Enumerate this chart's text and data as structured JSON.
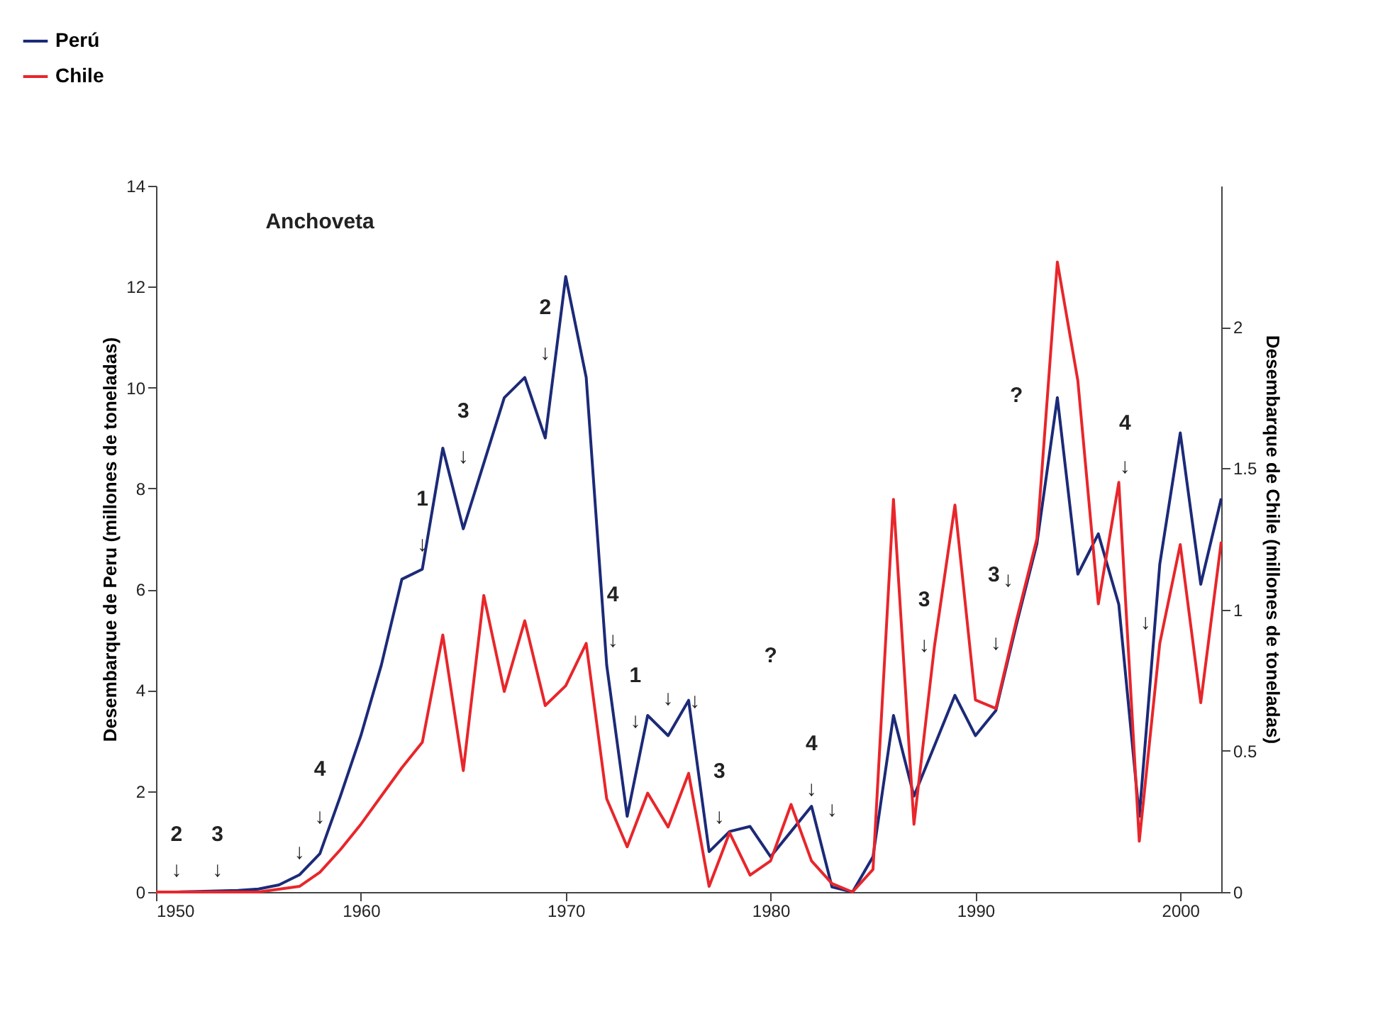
{
  "chart_data": {
    "type": "line",
    "x": [
      1950,
      1951,
      1952,
      1953,
      1954,
      1955,
      1956,
      1957,
      1958,
      1959,
      1960,
      1961,
      1962,
      1963,
      1964,
      1965,
      1966,
      1967,
      1968,
      1969,
      1970,
      1971,
      1972,
      1973,
      1974,
      1975,
      1976,
      1977,
      1978,
      1979,
      1980,
      1981,
      1982,
      1983,
      1984,
      1985,
      1986,
      1987,
      1988,
      1989,
      1990,
      1991,
      1992,
      1993,
      1994,
      1995,
      1996,
      1997,
      1998,
      1999,
      2000,
      2001,
      2002
    ],
    "series": [
      {
        "name": "Perú",
        "color": "#1c2a78",
        "values": [
          0,
          0,
          0.01,
          0.02,
          0.03,
          0.06,
          0.14,
          0.34,
          0.76,
          1.9,
          3.1,
          4.5,
          6.2,
          6.4,
          8.8,
          7.2,
          8.5,
          9.8,
          10.2,
          9.0,
          12.2,
          10.2,
          4.5,
          1.5,
          3.5,
          3.1,
          3.8,
          0.8,
          1.2,
          1.3,
          0.7,
          1.2,
          1.7,
          0.1,
          0.0,
          0.7,
          3.5,
          1.9,
          2.9,
          3.9,
          3.1,
          3.6,
          5.3,
          6.9,
          9.8,
          6.3,
          7.1,
          5.7,
          1.5,
          6.5,
          9.1,
          6.1,
          7.8
        ]
      },
      {
        "name": "Chile",
        "color": "#e8262b",
        "axis": "y2",
        "values": [
          0,
          0,
          0,
          0,
          0,
          0,
          0.01,
          0.02,
          0.07,
          0.15,
          0.24,
          0.34,
          0.44,
          0.53,
          0.91,
          0.43,
          1.05,
          0.71,
          0.96,
          0.66,
          0.73,
          0.88,
          0.33,
          0.16,
          0.35,
          0.23,
          0.42,
          0.02,
          0.21,
          0.06,
          0.11,
          0.31,
          0.11,
          0.03,
          0.0,
          0.08,
          1.39,
          0.24,
          0.87,
          1.37,
          0.68,
          0.65,
          0.96,
          1.25,
          2.23,
          1.81,
          1.02,
          1.45,
          0.18,
          0.88,
          1.23,
          0.67,
          1.24
        ]
      }
    ],
    "xlim": [
      1950,
      2002
    ],
    "xticks": [
      1950,
      1960,
      1970,
      1980,
      1990,
      2000
    ],
    "ylim": [
      0,
      14
    ],
    "yticks": [
      0,
      2,
      4,
      6,
      8,
      10,
      12,
      14
    ],
    "y2lim": [
      0,
      2.5
    ],
    "y2ticks": [
      0,
      0.5,
      1,
      1.5,
      2
    ],
    "ylabel": "Desembarque de Peru (millones de toneladas)",
    "y2label": "Desembarque de Chile (millones de toneladas)",
    "legend": "top left",
    "annotations": [
      "Anchoveta",
      "2",
      "↓",
      "3",
      "↓",
      "↓",
      "4",
      "↓",
      "1",
      "↓",
      "3",
      "↓",
      "2",
      "↓",
      "4",
      "↓",
      "1",
      "↓",
      "↓",
      "↓",
      "3",
      "↓",
      "?",
      "4",
      "↓",
      "↓",
      "3",
      "↓",
      "3",
      "↓",
      "↓",
      "?",
      "4",
      "↓",
      "↓"
    ]
  }
}
